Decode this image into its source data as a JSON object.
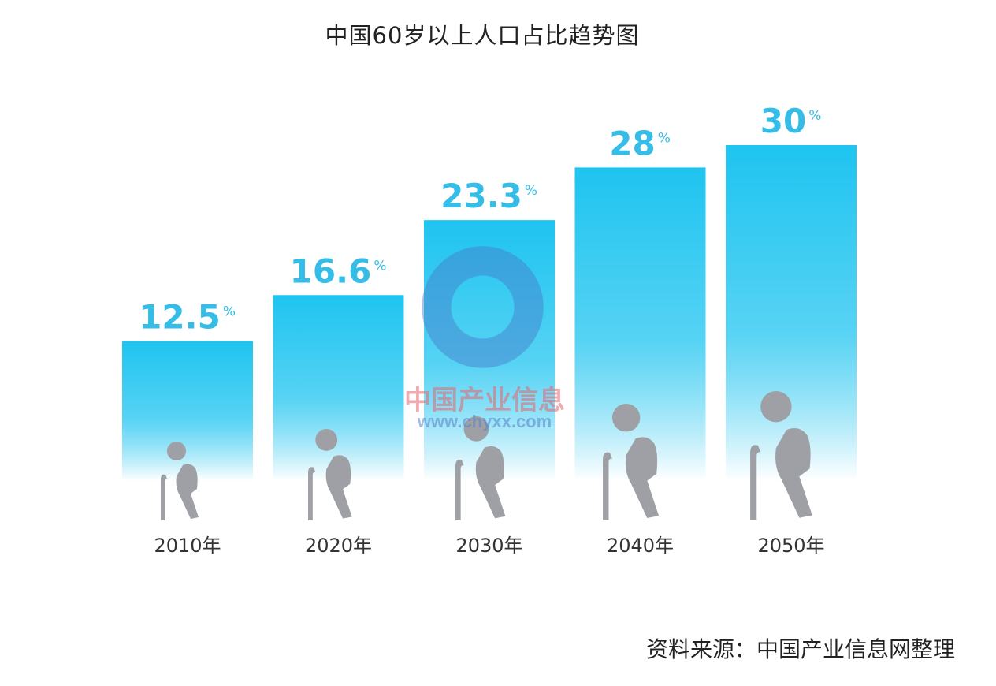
{
  "title": "中国60岁以上人口占比趋势图",
  "source": "资料来源：中国产业信息网整理",
  "watermark": {
    "name": "中国产业信息",
    "url": "www.chyxx.com"
  },
  "colors": {
    "bar_top": "#1ec4f0",
    "bar_bottom": "#ffffff",
    "label": "#35bde7",
    "figure": "#9ea0a5",
    "axis_text": "#333333"
  },
  "chart_data": {
    "type": "bar",
    "title": "中国60岁以上人口占比趋势图",
    "categories": [
      "2010年",
      "2020年",
      "2030年",
      "2040年",
      "2050年"
    ],
    "values": [
      12.5,
      16.6,
      23.3,
      28,
      30
    ],
    "value_labels": [
      "12.5",
      "16.6",
      "23.3",
      "28",
      "30"
    ],
    "unit": "%",
    "grid": false,
    "legend": "none"
  }
}
